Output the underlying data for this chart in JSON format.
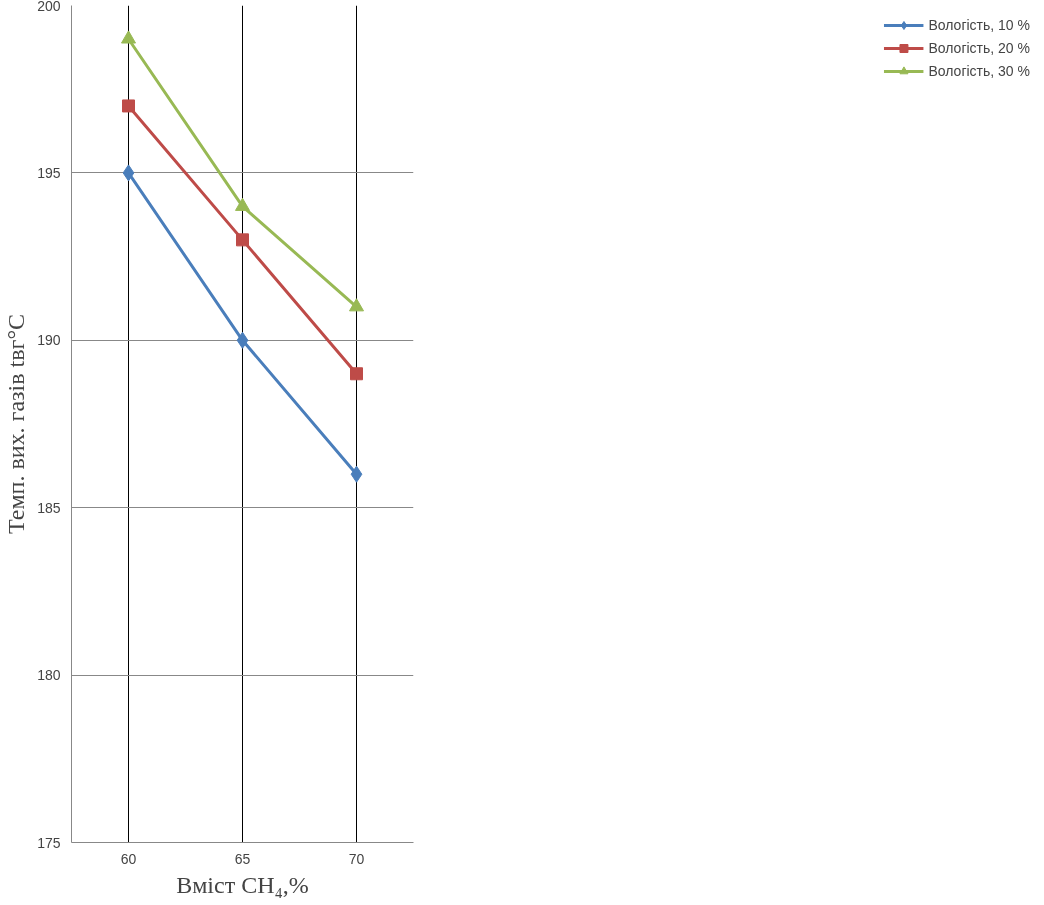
{
  "chart_data": {
    "type": "line",
    "xlabel": "Вміст CH₄,%",
    "ylabel": "Темп. вих. газів tвг°C",
    "categories": [
      "60",
      "65",
      "70"
    ],
    "series": [
      {
        "name": "Вологість, 10 %",
        "color": "#4a7ebb",
        "marker": "diamond",
        "values": [
          195,
          190,
          186
        ]
      },
      {
        "name": "Вологість, 20 %",
        "color": "#be4b48",
        "marker": "square",
        "values": [
          197,
          193,
          189
        ]
      },
      {
        "name": "Вологість, 30 %",
        "color": "#98b954",
        "marker": "triangle",
        "values": [
          199,
          194,
          191
        ]
      }
    ],
    "ylim": [
      175,
      200
    ],
    "yticks": [
      175,
      180,
      185,
      190,
      195,
      200
    ],
    "grid": true,
    "legend": "right",
    "line_style": "solid"
  }
}
